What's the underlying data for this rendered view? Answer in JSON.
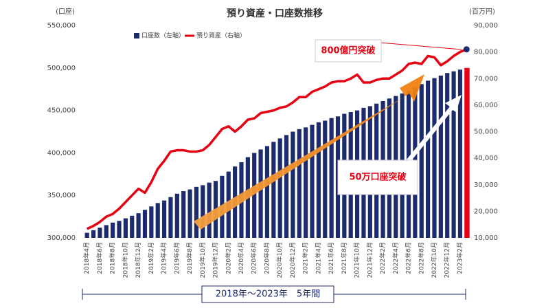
{
  "chart_data": {
    "type": "bar",
    "title": "預り資産・口座数推移",
    "y_axis_label": "(口座)",
    "y2_axis_label": "(百万円)",
    "categories": [
      "2018年4月",
      null,
      "2018年6月",
      null,
      "2018年8月",
      null,
      "2018年10月",
      null,
      "2018年12月",
      null,
      "2019年2月",
      null,
      "2019年4月",
      null,
      "2019年6月",
      null,
      "2019年8月",
      null,
      "2019年10月",
      null,
      "2019年12月",
      null,
      "2020年2月",
      null,
      "2020年4月",
      null,
      "2020年6月",
      null,
      "2020年8月",
      null,
      "2020年10月",
      null,
      "2020年12月",
      null,
      "2021年2月",
      null,
      "2021年4月",
      null,
      "2021年6月",
      null,
      "2021年8月",
      null,
      "2021年10月",
      null,
      "2021年12月",
      null,
      "2022年2月",
      null,
      "2022年4月",
      null,
      "2022年6月",
      null,
      "2022年8月",
      null,
      "2022年10月",
      null,
      "2022年12月",
      null,
      "2023年2月",
      null
    ],
    "series": [
      {
        "name": "口座数（左軸）",
        "color": "#1c2a6e",
        "values": [
          306000,
          309000,
          312000,
          315000,
          318000,
          320000,
          323000,
          326000,
          329000,
          333000,
          337000,
          341000,
          344000,
          348000,
          352000,
          355000,
          357000,
          360000,
          362000,
          365000,
          367000,
          373000,
          378000,
          384000,
          389000,
          395000,
          400000,
          404000,
          408000,
          413000,
          417000,
          421000,
          425000,
          428000,
          430000,
          433000,
          436000,
          438000,
          441000,
          443000,
          446000,
          448000,
          450000,
          453000,
          455000,
          458000,
          461000,
          464000,
          467000,
          470000,
          473000,
          477000,
          481000,
          485000,
          488000,
          491000,
          494000,
          496000,
          498000,
          500000
        ]
      },
      {
        "name": "預り資産（右軸）",
        "color": "#e60012",
        "type": "line",
        "axis": "y2",
        "values": [
          13400,
          14500,
          16000,
          18000,
          19000,
          21000,
          23500,
          26000,
          28500,
          27000,
          31000,
          36000,
          39000,
          42500,
          43000,
          43000,
          42500,
          42500,
          43000,
          45000,
          48000,
          51000,
          52000,
          50000,
          52000,
          54500,
          55000,
          57000,
          57500,
          58000,
          59000,
          59500,
          61000,
          63000,
          63000,
          65000,
          66000,
          67000,
          68500,
          69000,
          69000,
          70000,
          71500,
          68500,
          68500,
          69500,
          70000,
          70000,
          71500,
          73000,
          75500,
          76000,
          75500,
          78500,
          78000,
          75000,
          76500,
          78500,
          80000,
          81000
        ]
      }
    ],
    "ylim": [
      300000,
      550000
    ],
    "yticks": [
      {
        "value": 300000,
        "label": "300,000"
      },
      {
        "value": 350000,
        "label": "350,000"
      },
      {
        "value": 400000,
        "label": "400,000"
      },
      {
        "value": 450000,
        "label": "450,000"
      },
      {
        "value": 500000,
        "label": "500,000"
      },
      {
        "value": 550000,
        "label": "550,000"
      }
    ],
    "y2lim": [
      10000,
      90000
    ],
    "y2ticks": [
      {
        "value": 10000,
        "label": "10,000"
      },
      {
        "value": 20000,
        "label": "20,000"
      },
      {
        "value": 30000,
        "label": "30,000"
      },
      {
        "value": 40000,
        "label": "40,000"
      },
      {
        "value": 50000,
        "label": "50,000"
      },
      {
        "value": 60000,
        "label": "60,000"
      },
      {
        "value": 70000,
        "label": "70,000"
      },
      {
        "value": 80000,
        "label": "80,000"
      },
      {
        "value": 90000,
        "label": "90,000"
      }
    ],
    "grid": false,
    "highlight_last_color": "#e60012",
    "annotations": [
      "800億円突破",
      "50万口座突破"
    ],
    "period_label": "2018年～2023年　5年間"
  }
}
